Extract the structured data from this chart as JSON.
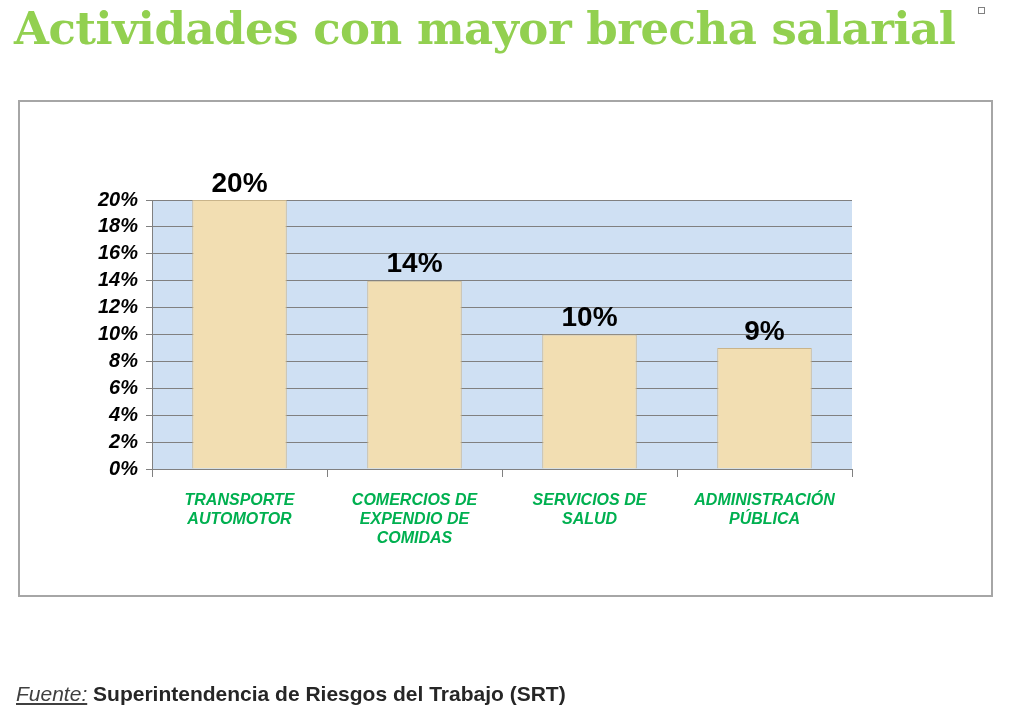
{
  "chart_data": {
    "type": "bar",
    "title": "Actividades con mayor brecha salarial",
    "categories": [
      "TRANSPORTE AUTOMOTOR",
      "COMERCIOS DE EXPENDIO DE COMIDAS",
      "SERVICIOS DE SALUD",
      "ADMINISTRACIÓN PÚBLICA"
    ],
    "values": [
      20,
      14,
      10,
      9
    ],
    "color": "#f2deb2",
    "value_labels": [
      "20%",
      "14%",
      "10%",
      "9%"
    ],
    "ylim": [
      0,
      20
    ],
    "yticks": [
      {
        "value": 0,
        "label": "0%"
      },
      {
        "value": 2,
        "label": "2%"
      },
      {
        "value": 4,
        "label": "4%"
      },
      {
        "value": 6,
        "label": "6%"
      },
      {
        "value": 8,
        "label": "8%"
      },
      {
        "value": 10,
        "label": "10%"
      },
      {
        "value": 12,
        "label": "12%"
      },
      {
        "value": 14,
        "label": "14%"
      },
      {
        "value": 16,
        "label": "16%"
      },
      {
        "value": 18,
        "label": "18%"
      },
      {
        "value": 20,
        "label": "20%"
      }
    ],
    "grid": "y",
    "annotations": [
      "Fuente: Superintendencia de Riesgos del Trabajo (SRT)"
    ]
  }
}
